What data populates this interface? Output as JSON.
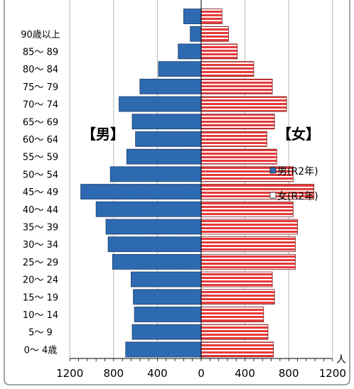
{
  "chart_data": {
    "type": "bar",
    "categories": [
      "0～ 4歳",
      "5～ 9",
      "10～ 14",
      "15～ 19",
      "20～ 24",
      "25～ 29",
      "30～ 34",
      "35～ 39",
      "40～ 44",
      "45～ 49",
      "50～ 54",
      "55～ 59",
      "60～ 64",
      "65～ 69",
      "70～ 74",
      "75～ 79",
      "80～ 84",
      "85～ 89",
      "90歳以上"
    ],
    "series": [
      {
        "name": "男(R2年)",
        "values": [
          690,
          630,
          610,
          620,
          640,
          810,
          850,
          870,
          960,
          1100,
          830,
          680,
          600,
          630,
          750,
          560,
          390,
          210,
          100
        ],
        "color": "#2f6db5"
      },
      {
        "name": "女(R2年)",
        "values": [
          660,
          610,
          570,
          670,
          650,
          860,
          860,
          880,
          840,
          1030,
          840,
          690,
          600,
          670,
          780,
          650,
          480,
          330,
          250
        ],
        "color": "#e63a3a"
      }
    ],
    "top_partial": {
      "male": 160,
      "female": 190
    },
    "xlim": [
      -1200,
      1200
    ],
    "x_ticks": [
      "1200",
      "800",
      "400",
      "0",
      "400",
      "800",
      "1200"
    ],
    "x_tick_values": [
      -1200,
      -800,
      -400,
      0,
      400,
      800,
      1200
    ],
    "unit_label": "人",
    "side_labels": {
      "male": "【男】",
      "female": "【女】"
    },
    "legend_position": "right-middle",
    "grid": true
  }
}
